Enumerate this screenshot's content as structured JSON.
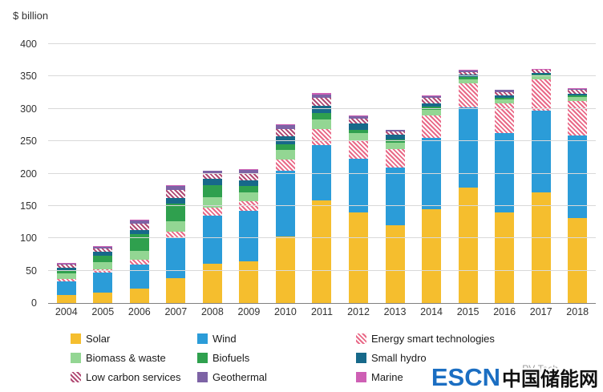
{
  "chart_data": {
    "type": "bar",
    "stacked": true,
    "unit_label": "$ billion",
    "title": "",
    "xlabel": "",
    "ylabel": "$ billion",
    "ylim": [
      0,
      400
    ],
    "yticks": [
      0,
      50,
      100,
      150,
      200,
      250,
      300,
      350,
      400
    ],
    "grid": true,
    "legend_position": "bottom",
    "categories": [
      "2004",
      "2005",
      "2006",
      "2007",
      "2008",
      "2009",
      "2010",
      "2011",
      "2012",
      "2013",
      "2014",
      "2015",
      "2016",
      "2017",
      "2018"
    ],
    "series": [
      {
        "name": "Solar",
        "color": "#F5BE2E",
        "pattern": "solid",
        "values": [
          12,
          16,
          22,
          39,
          61,
          64,
          103,
          158,
          140,
          120,
          145,
          178,
          140,
          171,
          131
        ]
      },
      {
        "name": "Wind",
        "color": "#2B9CD8",
        "pattern": "solid",
        "values": [
          21,
          31,
          38,
          61,
          74,
          79,
          101,
          86,
          83,
          89,
          110,
          124,
          123,
          126,
          128
        ]
      },
      {
        "name": "Energy smart technologies",
        "color": "#E96A88",
        "pattern": "hatch",
        "values": [
          4,
          5,
          7,
          10,
          12,
          14,
          18,
          25,
          27,
          29,
          35,
          37,
          45,
          49,
          53
        ]
      },
      {
        "name": "Biomass & waste",
        "color": "#93D693",
        "pattern": "solid",
        "values": [
          9,
          11,
          13,
          16,
          16,
          14,
          14,
          15,
          12,
          10,
          9,
          7,
          7,
          5,
          6
        ]
      },
      {
        "name": "Biofuels",
        "color": "#2FA04E",
        "pattern": "solid",
        "values": [
          4,
          10,
          26,
          28,
          19,
          10,
          9,
          9,
          6,
          5,
          4,
          3,
          2,
          2,
          3
        ]
      },
      {
        "name": "Small hydro",
        "color": "#17698A",
        "pattern": "solid",
        "values": [
          5,
          6,
          7,
          8,
          10,
          9,
          13,
          12,
          9,
          7,
          6,
          4,
          4,
          3,
          2
        ]
      },
      {
        "name": "Low carbon services",
        "color": "#B14A74",
        "pattern": "hatch",
        "values": [
          4,
          5,
          10,
          13,
          8,
          10,
          11,
          12,
          8,
          5,
          8,
          4,
          5,
          4,
          6
        ]
      },
      {
        "name": "Geothermal",
        "color": "#7D63A5",
        "pattern": "solid",
        "values": [
          2,
          3,
          5,
          6,
          4,
          6,
          6,
          5,
          4,
          2,
          3,
          2,
          3,
          1,
          2
        ]
      },
      {
        "name": "Marine",
        "color": "#CE5FB4",
        "pattern": "solid",
        "values": [
          1,
          1,
          1,
          1,
          1,
          1,
          1,
          2,
          1,
          1,
          1,
          1,
          1,
          1,
          1
        ]
      }
    ],
    "totals": [
      62,
      88,
      129,
      182,
      205,
      207,
      276,
      324,
      290,
      268,
      321,
      360,
      330,
      362,
      332
    ]
  },
  "watermark": {
    "brand_en": "ESCN",
    "brand_cn": "中国储能网",
    "source": "PV-Tech"
  }
}
